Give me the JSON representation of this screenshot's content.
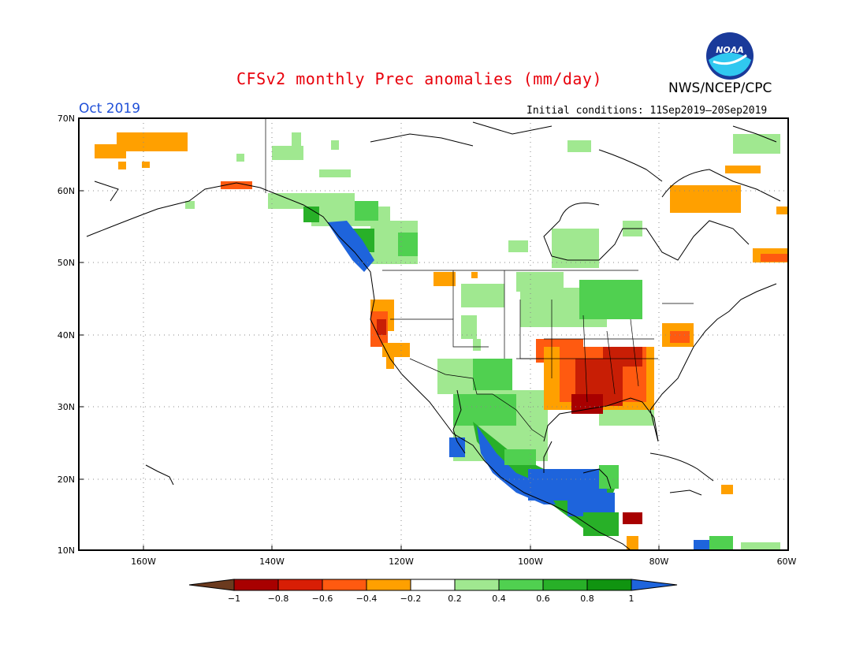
{
  "title": "CFSv2 monthly Prec anomalies (mm/day)",
  "agency": "NWS/NCEP/CPC",
  "logo_text": "NOAA",
  "month": "Oct 2019",
  "initial_conditions": "Initial conditions: 11Sep2019–20Sep2019",
  "map": {
    "lat_labels": [
      "70N",
      "60N",
      "50N",
      "40N",
      "30N",
      "20N",
      "10N"
    ],
    "lon_labels": [
      "160W",
      "140W",
      "120W",
      "100W",
      "80W",
      "60W"
    ],
    "grid": true,
    "lat_range": [
      10,
      70
    ],
    "lon_range": [
      -172,
      -60
    ]
  },
  "colorbar": {
    "labels": [
      "−1",
      "−0.8",
      "−0.6",
      "−0.4",
      "−0.2",
      "0.2",
      "0.4",
      "0.6",
      "0.8",
      "1"
    ],
    "colors": [
      "#6b3a1e",
      "#a80000",
      "#d81e05",
      "#ff5a10",
      "#ffa000",
      "#ffffff",
      "#a0e890",
      "#50d050",
      "#28b028",
      "#109410",
      "#1e64dc"
    ]
  },
  "colors": {
    "dry_strong": "#c81e05",
    "dry": "#ff5a10",
    "dry_weak": "#ffa000",
    "wet_weak": "#a0e890",
    "wet": "#50d050",
    "wet_strong": "#28b028",
    "wet_max": "#1e64dc"
  }
}
